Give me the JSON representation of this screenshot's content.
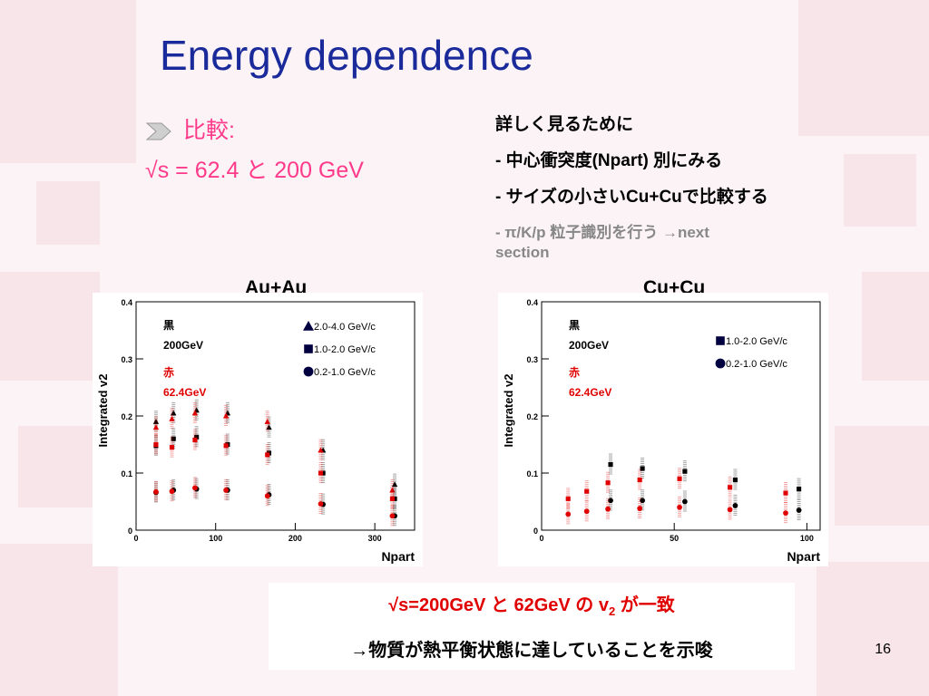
{
  "slide": {
    "title": "Energy dependence",
    "page_number": "16",
    "left_bullet_1": "比較:",
    "left_bullet_2": "√s = 62.4 と  200 GeV",
    "accent_pink": "#ff3a8a",
    "title_blue": "#1a2a9a"
  },
  "notes": {
    "heading": "詳しく見るために",
    "item1": "- 中心衝突度(Npart) 別にみる",
    "item2": "- サイズの小さいCu+Cuで比較する",
    "item3_line1": "- π/K/p  粒子識別を行う →next",
    "item3_line2": "section"
  },
  "conclusion": {
    "line1_prefix": "√s=200GeV と 62GeV の v",
    "line1_sub": "2",
    "line1_suffix": " が一致",
    "line2": "→物質が熱平衡状態に達していることを示唆"
  },
  "chart_data": [
    {
      "type": "scatter",
      "title": "Au+Au",
      "xlabel": "Npart",
      "ylabel": "Integrated v2",
      "xlim": [
        0,
        350
      ],
      "ylim": [
        0,
        0.4
      ],
      "xticks": [
        "0",
        "100",
        "200",
        "300"
      ],
      "yticks": [
        "0",
        "0.1",
        "0.2",
        "0.3",
        "0.4"
      ],
      "annotation_black": "黒",
      "annotation_black_energy": "200GeV",
      "annotation_red": "赤",
      "annotation_red_energy": "62.4GeV",
      "legend": [
        {
          "marker": "triangle",
          "label": "2.0-4.0 GeV/c"
        },
        {
          "marker": "square",
          "label": "1.0-2.0 GeV/c"
        },
        {
          "marker": "circle",
          "label": "0.2-1.0 GeV/c"
        }
      ],
      "series": [
        {
          "name": "2.0-4.0 GeV/c",
          "energy": "200GeV",
          "marker": "triangle",
          "color": "#000000",
          "x": [
            25,
            47,
            76,
            115,
            167,
            235,
            325
          ],
          "y": [
            0.19,
            0.205,
            0.21,
            0.205,
            0.18,
            0.14,
            0.08
          ]
        },
        {
          "name": "2.0-4.0 GeV/c",
          "energy": "62.4GeV",
          "marker": "triangle",
          "color": "#e00000",
          "x": [
            25,
            45,
            74,
            113,
            165,
            232,
            322
          ],
          "y": [
            0.18,
            0.195,
            0.205,
            0.2,
            0.19,
            0.14,
            0.07
          ]
        },
        {
          "name": "1.0-2.0 GeV/c",
          "energy": "200GeV",
          "marker": "square",
          "color": "#000000",
          "x": [
            25,
            47,
            76,
            115,
            167,
            235,
            325
          ],
          "y": [
            0.148,
            0.16,
            0.163,
            0.15,
            0.135,
            0.1,
            0.055
          ]
        },
        {
          "name": "1.0-2.0 GeV/c",
          "energy": "62.4GeV",
          "marker": "square",
          "color": "#e00000",
          "x": [
            25,
            45,
            74,
            113,
            165,
            232,
            322
          ],
          "y": [
            0.15,
            0.145,
            0.158,
            0.148,
            0.132,
            0.1,
            0.055
          ]
        },
        {
          "name": "0.2-1.0 GeV/c",
          "energy": "200GeV",
          "marker": "circle",
          "color": "#000000",
          "x": [
            25,
            47,
            76,
            115,
            167,
            235,
            325
          ],
          "y": [
            0.066,
            0.07,
            0.072,
            0.07,
            0.062,
            0.045,
            0.025
          ]
        },
        {
          "name": "0.2-1.0 GeV/c",
          "energy": "62.4GeV",
          "marker": "circle",
          "color": "#e00000",
          "x": [
            25,
            45,
            74,
            113,
            165,
            232,
            322
          ],
          "y": [
            0.067,
            0.068,
            0.074,
            0.07,
            0.06,
            0.046,
            0.025
          ]
        }
      ]
    },
    {
      "type": "scatter",
      "title": "Cu+Cu",
      "xlabel": "Npart",
      "ylabel": "Integrated v2",
      "xlim": [
        0,
        105
      ],
      "ylim": [
        0,
        0.4
      ],
      "xticks": [
        "0",
        "50",
        "100"
      ],
      "yticks": [
        "0",
        "0.1",
        "0.2",
        "0.3",
        "0.4"
      ],
      "annotation_black": "黒",
      "annotation_black_energy": "200GeV",
      "annotation_red": "赤",
      "annotation_red_energy": "62.4GeV",
      "legend": [
        {
          "marker": "square",
          "label": "1.0-2.0 GeV/c"
        },
        {
          "marker": "circle",
          "label": "0.2-1.0 GeV/c"
        }
      ],
      "series": [
        {
          "name": "1.0-2.0 GeV/c",
          "energy": "200GeV",
          "marker": "square",
          "color": "#000000",
          "x": [
            26,
            38,
            54,
            73,
            97
          ],
          "y": [
            0.115,
            0.108,
            0.103,
            0.088,
            0.072
          ]
        },
        {
          "name": "1.0-2.0 GeV/c",
          "energy": "62.4GeV",
          "marker": "square",
          "color": "#e00000",
          "x": [
            10,
            17,
            25,
            37,
            52,
            71,
            92
          ],
          "y": [
            0.055,
            0.068,
            0.083,
            0.088,
            0.09,
            0.075,
            0.065
          ]
        },
        {
          "name": "0.2-1.0 GeV/c",
          "energy": "200GeV",
          "marker": "circle",
          "color": "#000000",
          "x": [
            26,
            38,
            54,
            73,
            97
          ],
          "y": [
            0.052,
            0.052,
            0.05,
            0.043,
            0.035
          ]
        },
        {
          "name": "0.2-1.0 GeV/c",
          "energy": "62.4GeV",
          "marker": "circle",
          "color": "#e00000",
          "x": [
            10,
            17,
            25,
            37,
            52,
            71,
            92
          ],
          "y": [
            0.028,
            0.033,
            0.037,
            0.038,
            0.04,
            0.036,
            0.03
          ]
        }
      ]
    }
  ]
}
